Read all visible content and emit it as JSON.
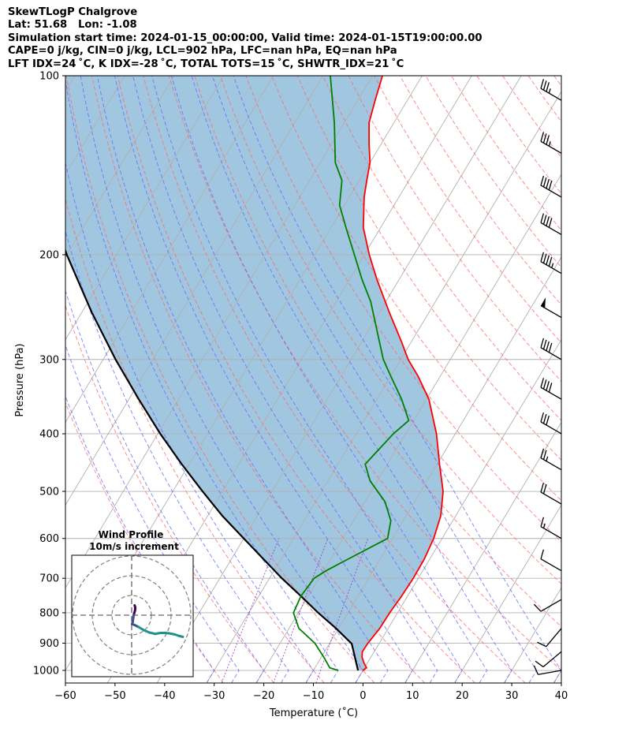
{
  "header": {
    "title": "SkewTLogP Chalgrove",
    "location": "Lat: 51.68   Lon: -1.08",
    "times": "Simulation start time: 2024-01-15_00:00:00, Valid time: 2024-01-15T19:00:00.00",
    "indices1": "CAPE=0 j/kg, CIN=0 j/kg, LCL=902 hPa, LFC=nan hPa, EQ=nan hPa",
    "indices2": "LFT IDX=24 ˚C, K IDX=-28 ˚C, TOTAL TOTS=15 ˚C, SHWTR_IDX=21 ˚C"
  },
  "chart_data": {
    "type": "skewt-logp",
    "xlabel": "Temperature (˚C)",
    "ylabel": "Pressure (hPa)",
    "xlim": [
      -60,
      40
    ],
    "ylim": [
      1050,
      100
    ],
    "x_ticks": [
      "−60",
      "−50",
      "−40",
      "−30",
      "−20",
      "−10",
      "0",
      "10",
      "20",
      "30",
      "40"
    ],
    "y_ticks": [
      {
        "p": 100,
        "label": "100"
      },
      {
        "p": 200,
        "label": "200"
      },
      {
        "p": 300,
        "label": "300"
      },
      {
        "p": 400,
        "label": "400"
      },
      {
        "p": 500,
        "label": "500"
      },
      {
        "p": 600,
        "label": "600"
      },
      {
        "p": 700,
        "label": "700"
      },
      {
        "p": 800,
        "label": "800"
      },
      {
        "p": 900,
        "label": "900"
      },
      {
        "p": 1000,
        "label": "1000"
      }
    ],
    "grid": true,
    "colors": {
      "temperature": "#ff0000",
      "dewpoint": "#008000",
      "parcel": "#000000",
      "cin_fill": "#a1c6e0",
      "isotherm": "#b0b0b0",
      "dry_adiabat": "#ff6666",
      "moist_adiabat": "#6666ff",
      "mixing_ratio": "#9933cc",
      "barb": "#000000"
    },
    "temperature": [
      [
        1000,
        0.0
      ],
      [
        990,
        0.4
      ],
      [
        970,
        -0.8
      ],
      [
        950,
        -1.8
      ],
      [
        930,
        -2.4
      ],
      [
        900,
        -2.3
      ],
      [
        850,
        -1.7
      ],
      [
        800,
        -1.6
      ],
      [
        750,
        -1.2
      ],
      [
        700,
        -1.0
      ],
      [
        650,
        -1.1
      ],
      [
        600,
        -1.7
      ],
      [
        550,
        -3.0
      ],
      [
        500,
        -5.5
      ],
      [
        450,
        -9.5
      ],
      [
        400,
        -13.8
      ],
      [
        350,
        -19.5
      ],
      [
        320,
        -24.5
      ],
      [
        300,
        -28.5
      ],
      [
        280,
        -32.0
      ],
      [
        250,
        -38.0
      ],
      [
        220,
        -44.5
      ],
      [
        200,
        -49.0
      ],
      [
        180,
        -53.5
      ],
      [
        160,
        -57.0
      ],
      [
        150,
        -58.5
      ],
      [
        140,
        -60.0
      ],
      [
        130,
        -62.5
      ],
      [
        120,
        -65.0
      ],
      [
        110,
        -66.5
      ],
      [
        100,
        -68.0
      ]
    ],
    "dewpoint": [
      [
        1000,
        -5.0
      ],
      [
        990,
        -7.0
      ],
      [
        950,
        -9.5
      ],
      [
        900,
        -13.0
      ],
      [
        850,
        -18.0
      ],
      [
        800,
        -21.0
      ],
      [
        750,
        -21.5
      ],
      [
        700,
        -21.0
      ],
      [
        680,
        -19.5
      ],
      [
        650,
        -16.5
      ],
      [
        600,
        -11.0
      ],
      [
        560,
        -12.5
      ],
      [
        520,
        -16.0
      ],
      [
        480,
        -21.5
      ],
      [
        450,
        -24.5
      ],
      [
        400,
        -22.5
      ],
      [
        380,
        -21.0
      ],
      [
        350,
        -25.0
      ],
      [
        320,
        -30.0
      ],
      [
        300,
        -33.5
      ],
      [
        270,
        -38.0
      ],
      [
        240,
        -43.0
      ],
      [
        220,
        -47.5
      ],
      [
        200,
        -52.0
      ],
      [
        180,
        -57.0
      ],
      [
        165,
        -61.0
      ],
      [
        150,
        -63.5
      ],
      [
        140,
        -67.0
      ],
      [
        120,
        -72.0
      ],
      [
        100,
        -78.5
      ]
    ],
    "parcel": [
      [
        1000,
        -1.0
      ],
      [
        902,
        -5.5
      ],
      [
        850,
        -10.5
      ],
      [
        800,
        -16.0
      ],
      [
        750,
        -21.5
      ],
      [
        700,
        -27.5
      ],
      [
        650,
        -33.5
      ],
      [
        600,
        -40.0
      ],
      [
        550,
        -47.0
      ],
      [
        500,
        -54.0
      ],
      [
        450,
        -61.5
      ],
      [
        400,
        -69.5
      ],
      [
        350,
        -78.0
      ],
      [
        300,
        -87.5
      ],
      [
        250,
        -98.0
      ],
      [
        200,
        -110.0
      ],
      [
        150,
        -124.0
      ],
      [
        120,
        -134.0
      ],
      [
        100,
        -142.0
      ]
    ],
    "wind_barbs": [
      {
        "p": 110,
        "speed_kt": 35,
        "dir_deg": 300
      },
      {
        "p": 135,
        "speed_kt": 35,
        "dir_deg": 300
      },
      {
        "p": 160,
        "speed_kt": 40,
        "dir_deg": 300
      },
      {
        "p": 185,
        "speed_kt": 40,
        "dir_deg": 300
      },
      {
        "p": 215,
        "speed_kt": 45,
        "dir_deg": 300
      },
      {
        "p": 255,
        "speed_kt": 50,
        "dir_deg": 300
      },
      {
        "p": 300,
        "speed_kt": 40,
        "dir_deg": 300
      },
      {
        "p": 350,
        "speed_kt": 40,
        "dir_deg": 300
      },
      {
        "p": 400,
        "speed_kt": 30,
        "dir_deg": 300
      },
      {
        "p": 460,
        "speed_kt": 25,
        "dir_deg": 300
      },
      {
        "p": 525,
        "speed_kt": 20,
        "dir_deg": 300
      },
      {
        "p": 600,
        "speed_kt": 15,
        "dir_deg": 300
      },
      {
        "p": 680,
        "speed_kt": 10,
        "dir_deg": 300
      },
      {
        "p": 760,
        "speed_kt": 10,
        "dir_deg": 240
      },
      {
        "p": 850,
        "speed_kt": 10,
        "dir_deg": 220
      },
      {
        "p": 930,
        "speed_kt": 10,
        "dir_deg": 230
      },
      {
        "p": 1000,
        "speed_kt": 10,
        "dir_deg": 260
      }
    ],
    "hodograph": {
      "title": "Wind Profile",
      "subtitle": "10m/s increment",
      "ring_spacing_ms": 10,
      "rings": 3,
      "path_ms": [
        [
          1.5,
          5.0
        ],
        [
          1.8,
          4.0
        ],
        [
          1.8,
          3.0
        ],
        [
          1.6,
          2.0
        ],
        [
          1.3,
          1.0
        ],
        [
          1.0,
          0.0
        ],
        [
          0.8,
          -1.5
        ],
        [
          0.5,
          -3.5
        ],
        [
          0.2,
          -4.5
        ],
        [
          1.5,
          -5.0
        ],
        [
          3.5,
          -6.0
        ],
        [
          6.0,
          -7.5
        ],
        [
          9.0,
          -8.8
        ],
        [
          12.0,
          -9.5
        ],
        [
          14.5,
          -9.0
        ],
        [
          17.0,
          -9.0
        ],
        [
          19.0,
          -9.2
        ],
        [
          20.5,
          -9.5
        ],
        [
          22.0,
          -9.8
        ],
        [
          24.0,
          -10.5
        ],
        [
          26.0,
          -11.0
        ]
      ],
      "path_colors": [
        "#440154",
        "#3b528b",
        "#21918c",
        "#5ec962",
        "#fde725"
      ]
    }
  }
}
